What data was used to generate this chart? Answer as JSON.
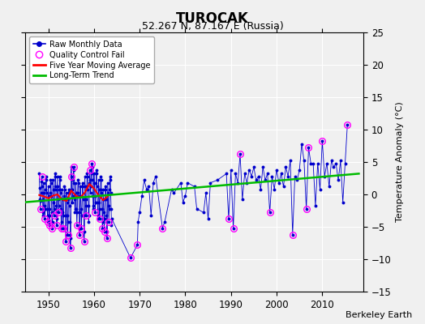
{
  "title": "TUROCAK",
  "subtitle": "52.267 N, 87.167 E (Russia)",
  "ylabel": "Temperature Anomaly (°C)",
  "credit": "Berkeley Earth",
  "xlim": [
    1945,
    2019
  ],
  "ylim": [
    -15,
    25
  ],
  "yticks": [
    -15,
    -10,
    -5,
    0,
    5,
    10,
    15,
    20,
    25
  ],
  "xticks": [
    1950,
    1960,
    1970,
    1980,
    1990,
    2000,
    2010
  ],
  "bg_color": "#f0f0f0",
  "plot_bg": "#f0f0f0",
  "raw_color": "#0000cc",
  "qc_color": "#ff00ff",
  "ma_color": "#ff0000",
  "trend_color": "#00bb00",
  "raw_monthly": [
    [
      1948.0,
      3.2
    ],
    [
      1948.083,
      1.0
    ],
    [
      1948.167,
      -0.8
    ],
    [
      1948.25,
      -2.2
    ],
    [
      1948.333,
      -1.0
    ],
    [
      1948.417,
      0.3
    ],
    [
      1948.5,
      2.0
    ],
    [
      1948.583,
      2.8
    ],
    [
      1948.667,
      1.2
    ],
    [
      1948.75,
      -0.8
    ],
    [
      1948.833,
      -3.2
    ],
    [
      1948.917,
      -2.8
    ],
    [
      1949.0,
      1.8
    ],
    [
      1949.083,
      0.2
    ],
    [
      1949.167,
      -1.8
    ],
    [
      1949.25,
      -3.8
    ],
    [
      1949.333,
      -2.2
    ],
    [
      1949.417,
      0.8
    ],
    [
      1949.5,
      2.8
    ],
    [
      1949.583,
      2.2
    ],
    [
      1949.667,
      0.2
    ],
    [
      1949.75,
      -2.2
    ],
    [
      1949.833,
      -4.2
    ],
    [
      1949.917,
      -3.2
    ],
    [
      1950.0,
      1.2
    ],
    [
      1950.083,
      -0.2
    ],
    [
      1950.167,
      -2.2
    ],
    [
      1950.25,
      -4.8
    ],
    [
      1950.333,
      -3.2
    ],
    [
      1950.417,
      0.2
    ],
    [
      1950.5,
      2.2
    ],
    [
      1950.583,
      1.8
    ],
    [
      1950.667,
      -0.2
    ],
    [
      1950.75,
      -2.8
    ],
    [
      1950.833,
      -5.2
    ],
    [
      1950.917,
      -4.2
    ],
    [
      1951.0,
      2.2
    ],
    [
      1951.083,
      0.8
    ],
    [
      1951.167,
      -1.2
    ],
    [
      1951.25,
      -3.2
    ],
    [
      1951.333,
      -2.2
    ],
    [
      1951.417,
      1.2
    ],
    [
      1951.5,
      3.2
    ],
    [
      1951.583,
      2.8
    ],
    [
      1951.667,
      0.8
    ],
    [
      1951.75,
      -1.8
    ],
    [
      1951.833,
      -4.8
    ],
    [
      1951.917,
      -3.8
    ],
    [
      1952.0,
      2.8
    ],
    [
      1952.083,
      1.2
    ],
    [
      1952.167,
      -0.8
    ],
    [
      1952.25,
      -2.8
    ],
    [
      1952.333,
      -1.8
    ],
    [
      1952.417,
      0.8
    ],
    [
      1952.5,
      2.8
    ],
    [
      1952.583,
      2.2
    ],
    [
      1952.667,
      0.2
    ],
    [
      1952.75,
      -2.2
    ],
    [
      1952.833,
      -5.2
    ],
    [
      1952.917,
      -4.2
    ],
    [
      1953.0,
      0.8
    ],
    [
      1953.083,
      -0.8
    ],
    [
      1953.167,
      -2.8
    ],
    [
      1953.25,
      -5.2
    ],
    [
      1953.333,
      -3.2
    ],
    [
      1953.417,
      -0.2
    ],
    [
      1953.5,
      1.2
    ],
    [
      1953.583,
      0.8
    ],
    [
      1953.667,
      -0.8
    ],
    [
      1953.75,
      -3.2
    ],
    [
      1953.833,
      -7.2
    ],
    [
      1953.917,
      -6.2
    ],
    [
      1954.0,
      0.2
    ],
    [
      1954.083,
      -1.2
    ],
    [
      1954.167,
      -3.2
    ],
    [
      1954.25,
      -6.2
    ],
    [
      1954.333,
      -4.2
    ],
    [
      1954.417,
      -0.8
    ],
    [
      1954.5,
      0.8
    ],
    [
      1954.583,
      0.2
    ],
    [
      1954.667,
      -1.8
    ],
    [
      1954.75,
      -4.2
    ],
    [
      1954.833,
      -8.2
    ],
    [
      1954.917,
      -6.8
    ],
    [
      1955.0,
      4.2
    ],
    [
      1955.083,
      2.8
    ],
    [
      1955.167,
      0.8
    ],
    [
      1955.25,
      -1.2
    ],
    [
      1955.333,
      -0.2
    ],
    [
      1955.417,
      2.2
    ],
    [
      1955.5,
      4.2
    ],
    [
      1955.583,
      3.8
    ],
    [
      1955.667,
      1.8
    ],
    [
      1955.75,
      -0.8
    ],
    [
      1955.833,
      -2.8
    ],
    [
      1955.917,
      -2.2
    ],
    [
      1956.0,
      1.8
    ],
    [
      1956.083,
      0.2
    ],
    [
      1956.167,
      -2.2
    ],
    [
      1956.25,
      -4.8
    ],
    [
      1956.333,
      -2.8
    ],
    [
      1956.417,
      0.2
    ],
    [
      1956.5,
      2.2
    ],
    [
      1956.583,
      1.8
    ],
    [
      1956.667,
      -0.2
    ],
    [
      1956.75,
      -2.8
    ],
    [
      1956.833,
      -6.2
    ],
    [
      1956.917,
      -5.2
    ],
    [
      1957.0,
      1.2
    ],
    [
      1957.083,
      -0.2
    ],
    [
      1957.167,
      -2.2
    ],
    [
      1957.25,
      -5.2
    ],
    [
      1957.333,
      -3.2
    ],
    [
      1957.417,
      -0.2
    ],
    [
      1957.5,
      1.8
    ],
    [
      1957.583,
      1.2
    ],
    [
      1957.667,
      -0.8
    ],
    [
      1957.75,
      -3.2
    ],
    [
      1957.833,
      -7.2
    ],
    [
      1957.917,
      -5.8
    ],
    [
      1958.0,
      2.8
    ],
    [
      1958.083,
      1.2
    ],
    [
      1958.167,
      -0.8
    ],
    [
      1958.25,
      -3.2
    ],
    [
      1958.333,
      -1.8
    ],
    [
      1958.417,
      1.2
    ],
    [
      1958.5,
      3.2
    ],
    [
      1958.583,
      2.8
    ],
    [
      1958.667,
      0.8
    ],
    [
      1958.75,
      -1.8
    ],
    [
      1958.833,
      -4.2
    ],
    [
      1958.917,
      -3.2
    ],
    [
      1959.0,
      1.8
    ],
    [
      1959.083,
      3.8
    ],
    [
      1959.167,
      2.2
    ],
    [
      1959.25,
      0.2
    ],
    [
      1959.333,
      1.2
    ],
    [
      1959.417,
      3.2
    ],
    [
      1959.5,
      4.8
    ],
    [
      1959.583,
      4.2
    ],
    [
      1959.667,
      2.2
    ],
    [
      1959.75,
      -0.2
    ],
    [
      1959.833,
      -2.2
    ],
    [
      1959.917,
      -1.8
    ],
    [
      1960.0,
      3.2
    ],
    [
      1960.083,
      1.8
    ],
    [
      1960.167,
      -0.2
    ],
    [
      1960.25,
      -2.8
    ],
    [
      1960.333,
      -1.2
    ],
    [
      1960.417,
      1.8
    ],
    [
      1960.5,
      3.8
    ],
    [
      1960.583,
      3.2
    ],
    [
      1960.667,
      1.2
    ],
    [
      1960.75,
      -1.2
    ],
    [
      1960.833,
      -3.8
    ],
    [
      1960.917,
      -3.2
    ],
    [
      1961.0,
      2.2
    ],
    [
      1961.083,
      0.8
    ],
    [
      1961.167,
      -1.2
    ],
    [
      1961.25,
      -3.8
    ],
    [
      1961.333,
      -2.2
    ],
    [
      1961.417,
      0.8
    ],
    [
      1961.5,
      2.8
    ],
    [
      1961.583,
      2.2
    ],
    [
      1961.667,
      0.2
    ],
    [
      1961.75,
      -2.2
    ],
    [
      1961.833,
      -5.2
    ],
    [
      1961.917,
      -4.2
    ],
    [
      1962.0,
      0.8
    ],
    [
      1962.083,
      -0.8
    ],
    [
      1962.167,
      -2.8
    ],
    [
      1962.25,
      -5.8
    ],
    [
      1962.333,
      -3.8
    ],
    [
      1962.417,
      -0.8
    ],
    [
      1962.5,
      1.2
    ],
    [
      1962.583,
      0.8
    ],
    [
      1962.667,
      -0.8
    ],
    [
      1962.75,
      -3.2
    ],
    [
      1962.833,
      -6.8
    ],
    [
      1962.917,
      -5.8
    ],
    [
      1963.0,
      1.8
    ],
    [
      1963.083,
      0.2
    ],
    [
      1963.167,
      -1.8
    ],
    [
      1963.25,
      -4.2
    ],
    [
      1963.333,
      -2.2
    ],
    [
      1963.417,
      0.8
    ],
    [
      1963.5,
      2.8
    ],
    [
      1963.583,
      2.2
    ],
    [
      1963.667,
      0.2
    ],
    [
      1963.75,
      -2.2
    ],
    [
      1963.833,
      -4.8
    ],
    [
      1963.917,
      -3.8
    ],
    [
      1968.0,
      -9.8
    ],
    [
      1969.5,
      -7.8
    ],
    [
      1969.667,
      -4.2
    ],
    [
      1970.0,
      -2.8
    ],
    [
      1970.5,
      -0.2
    ],
    [
      1971.0,
      2.2
    ],
    [
      1971.5,
      0.8
    ],
    [
      1972.0,
      1.2
    ],
    [
      1972.5,
      -3.2
    ],
    [
      1973.0,
      1.8
    ],
    [
      1973.5,
      2.8
    ],
    [
      1975.0,
      -5.2
    ],
    [
      1975.5,
      -4.2
    ],
    [
      1977.0,
      0.8
    ],
    [
      1977.5,
      0.2
    ],
    [
      1979.0,
      1.8
    ],
    [
      1979.5,
      -1.2
    ],
    [
      1980.0,
      -0.2
    ],
    [
      1980.5,
      1.8
    ],
    [
      1982.0,
      1.2
    ],
    [
      1982.5,
      -2.2
    ],
    [
      1984.0,
      -2.8
    ],
    [
      1984.5,
      0.2
    ],
    [
      1985.0,
      -3.8
    ],
    [
      1985.5,
      1.8
    ],
    [
      1987.0,
      2.2
    ],
    [
      1989.0,
      3.2
    ],
    [
      1989.5,
      -3.8
    ],
    [
      1990.0,
      3.8
    ],
    [
      1990.5,
      -5.2
    ],
    [
      1991.0,
      3.2
    ],
    [
      1991.5,
      1.8
    ],
    [
      1992.0,
      6.2
    ],
    [
      1992.5,
      -0.8
    ],
    [
      1993.0,
      3.2
    ],
    [
      1993.5,
      1.8
    ],
    [
      1994.0,
      3.8
    ],
    [
      1994.5,
      2.8
    ],
    [
      1995.0,
      4.2
    ],
    [
      1995.5,
      2.2
    ],
    [
      1996.0,
      2.8
    ],
    [
      1996.5,
      0.8
    ],
    [
      1997.0,
      4.2
    ],
    [
      1997.5,
      2.2
    ],
    [
      1998.0,
      3.2
    ],
    [
      1998.5,
      -2.8
    ],
    [
      1999.0,
      2.8
    ],
    [
      1999.5,
      0.8
    ],
    [
      2000.0,
      3.8
    ],
    [
      2000.5,
      1.8
    ],
    [
      2001.0,
      3.2
    ],
    [
      2001.5,
      1.2
    ],
    [
      2002.0,
      4.2
    ],
    [
      2002.5,
      2.8
    ],
    [
      2003.0,
      5.2
    ],
    [
      2003.5,
      -6.2
    ],
    [
      2004.0,
      2.8
    ],
    [
      2004.5,
      2.2
    ],
    [
      2005.0,
      3.8
    ],
    [
      2005.5,
      7.8
    ],
    [
      2006.0,
      5.2
    ],
    [
      2006.5,
      -2.2
    ],
    [
      2007.0,
      7.2
    ],
    [
      2007.5,
      4.8
    ],
    [
      2008.0,
      4.8
    ],
    [
      2008.5,
      -1.8
    ],
    [
      2009.0,
      4.8
    ],
    [
      2009.5,
      0.8
    ],
    [
      2010.0,
      8.2
    ],
    [
      2010.5,
      2.8
    ],
    [
      2011.0,
      4.8
    ],
    [
      2011.5,
      1.2
    ],
    [
      2012.0,
      5.2
    ],
    [
      2012.5,
      4.2
    ],
    [
      2013.0,
      4.8
    ],
    [
      2013.5,
      2.2
    ],
    [
      2014.0,
      5.2
    ],
    [
      2014.5,
      -1.2
    ],
    [
      2015.0,
      4.8
    ],
    [
      2015.5,
      10.8
    ]
  ],
  "qc_fail": [
    [
      1948.25,
      -2.2
    ],
    [
      1948.583,
      2.8
    ],
    [
      1949.25,
      -3.8
    ],
    [
      1949.833,
      -4.2
    ],
    [
      1950.25,
      -4.8
    ],
    [
      1950.833,
      -5.2
    ],
    [
      1951.25,
      -3.2
    ],
    [
      1951.833,
      -4.8
    ],
    [
      1952.25,
      -2.8
    ],
    [
      1952.833,
      -5.2
    ],
    [
      1953.25,
      -5.2
    ],
    [
      1953.833,
      -7.2
    ],
    [
      1954.25,
      -6.2
    ],
    [
      1954.833,
      -8.2
    ],
    [
      1955.083,
      2.8
    ],
    [
      1955.5,
      4.2
    ],
    [
      1956.25,
      -4.8
    ],
    [
      1956.833,
      -6.2
    ],
    [
      1957.25,
      -5.2
    ],
    [
      1957.833,
      -7.2
    ],
    [
      1958.25,
      -3.2
    ],
    [
      1959.083,
      3.8
    ],
    [
      1959.5,
      4.8
    ],
    [
      1960.25,
      -2.8
    ],
    [
      1961.25,
      -3.8
    ],
    [
      1961.833,
      -5.2
    ],
    [
      1962.25,
      -5.8
    ],
    [
      1962.833,
      -6.8
    ],
    [
      1963.25,
      -4.2
    ],
    [
      1968.0,
      -9.8
    ],
    [
      1969.5,
      -7.8
    ],
    [
      1975.0,
      -5.2
    ],
    [
      1989.5,
      -3.8
    ],
    [
      1990.5,
      -5.2
    ],
    [
      1992.0,
      6.2
    ],
    [
      1998.5,
      -2.8
    ],
    [
      2003.5,
      -6.2
    ],
    [
      2006.5,
      -2.2
    ],
    [
      2007.0,
      7.2
    ],
    [
      2010.0,
      8.2
    ],
    [
      2015.5,
      10.8
    ]
  ],
  "trend_x": [
    1945,
    2018
  ],
  "trend_y": [
    -1.2,
    3.2
  ],
  "ma_x": [
    1948,
    1949,
    1950,
    1951,
    1952,
    1953,
    1954,
    1955,
    1956,
    1957,
    1958,
    1959,
    1960,
    1961,
    1962,
    1963
  ],
  "ma_y": [
    -0.1,
    -0.3,
    -0.6,
    -0.2,
    -0.0,
    -0.8,
    -1.0,
    0.6,
    -0.2,
    -0.5,
    0.3,
    1.6,
    0.9,
    -0.1,
    -0.9,
    -0.3
  ]
}
